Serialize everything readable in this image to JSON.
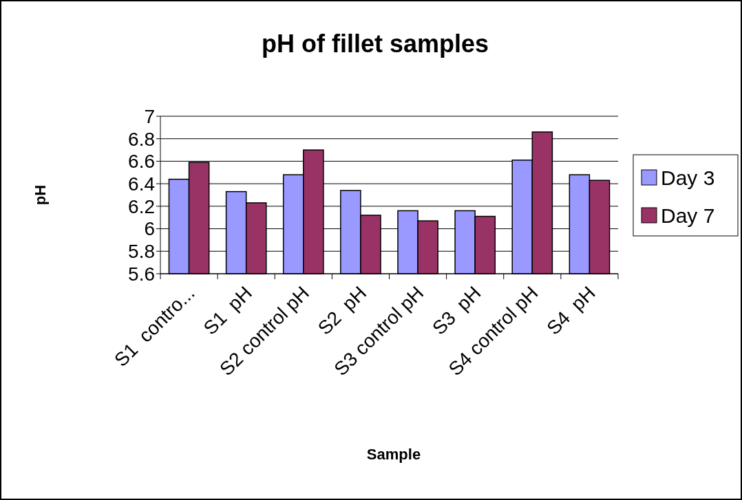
{
  "chart_data": {
    "type": "bar",
    "title": "pH of fillet samples",
    "xlabel": "Sample",
    "ylabel": "pH",
    "categories": [
      "S1  contro...",
      "S1  pH",
      "S2 control pH",
      "S2  pH",
      "S3 control pH",
      "S3  pH",
      "S4 control pH",
      "S4  pH"
    ],
    "series": [
      {
        "name": "Day 3",
        "color": "#9999ff",
        "values": [
          6.44,
          6.33,
          6.48,
          6.34,
          6.16,
          6.16,
          6.61,
          6.48
        ]
      },
      {
        "name": "Day 7",
        "color": "#993366",
        "values": [
          6.59,
          6.23,
          6.7,
          6.12,
          6.07,
          6.11,
          6.86,
          6.43
        ]
      }
    ],
    "ylim": [
      5.6,
      7
    ],
    "yticks": [
      5.6,
      5.8,
      6,
      6.2,
      6.4,
      6.6,
      6.8,
      7
    ],
    "grid": "y",
    "legend": "right"
  }
}
